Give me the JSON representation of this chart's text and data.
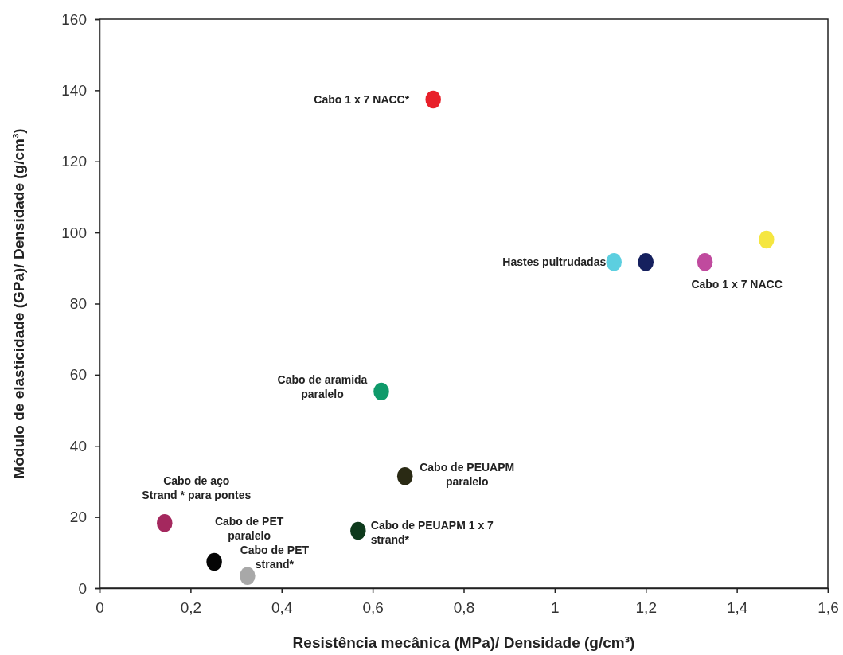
{
  "chart_data": {
    "type": "scatter",
    "xlabel": "Resistência mecânica (MPa)/ Densidade (g/cm³)",
    "ylabel": "Módulo de elasticidade (GPa)/ Densidade  (g/cm³)",
    "x": [
      0.733,
      1.13,
      1.2,
      1.33,
      1.465,
      0.619,
      0.671,
      0.568,
      0.143,
      0.252,
      0.325
    ],
    "values": [
      137.4,
      91.7,
      91.7,
      91.7,
      98,
      55.3,
      31.5,
      16.1,
      18.3,
      7.4,
      3.4
    ],
    "colors": [
      "#e8202a",
      "#5ccfe0",
      "#15205e",
      "#c04a9e",
      "#f5e640",
      "#0f9a6a",
      "#2a2a14",
      "#0e3a1c",
      "#a4285e",
      "#050505",
      "#a8a8a8"
    ],
    "marker": "circle",
    "grid": false,
    "xlim": [
      0,
      1.6
    ],
    "xticks": [
      0,
      {
        "value": 0.2,
        "label": "0,2"
      },
      {
        "value": 0.4,
        "label": "0,4"
      },
      {
        "value": 0.6,
        "label": "0,6"
      },
      {
        "value": 0.8,
        "label": "0,8"
      },
      1,
      {
        "value": 1.2,
        "label": "1,2"
      },
      {
        "value": 1.4,
        "label": "1,4"
      },
      {
        "value": 1.6,
        "label": "1,6"
      }
    ],
    "ylim": [
      0,
      160
    ],
    "yticks": [
      0,
      20,
      40,
      60,
      80,
      100,
      120,
      140,
      160
    ],
    "annotations": [
      {
        "text": "Cabo 1 x 7 NACC*",
        "x": 0.733,
        "y": 137.4
      },
      {
        "text": "Hastes pultrudadas",
        "x": 1.13,
        "y": 91.7
      },
      {
        "text": "Cabo 1 x 7 NACC",
        "x": 1.33,
        "y": 91.7
      },
      {
        "text": "Cabo de aramida\nparalelo",
        "x": 0.619,
        "y": 55.3
      },
      {
        "text": "Cabo de PEUAPM\nparalelo",
        "x": 0.671,
        "y": 31.5
      },
      {
        "text": "Cabo de PEUAPM 1 x 7\nstrand*",
        "x": 0.568,
        "y": 16.1
      },
      {
        "text": "Cabo de aço\nStrand * para pontes",
        "x": 0.143,
        "y": 18.3
      },
      {
        "text": "Cabo de PET\nparalelo",
        "x": 0.252,
        "y": 7.4
      },
      {
        "text": "Cabo de PET\nstrand*",
        "x": 0.325,
        "y": 3.4
      }
    ]
  }
}
